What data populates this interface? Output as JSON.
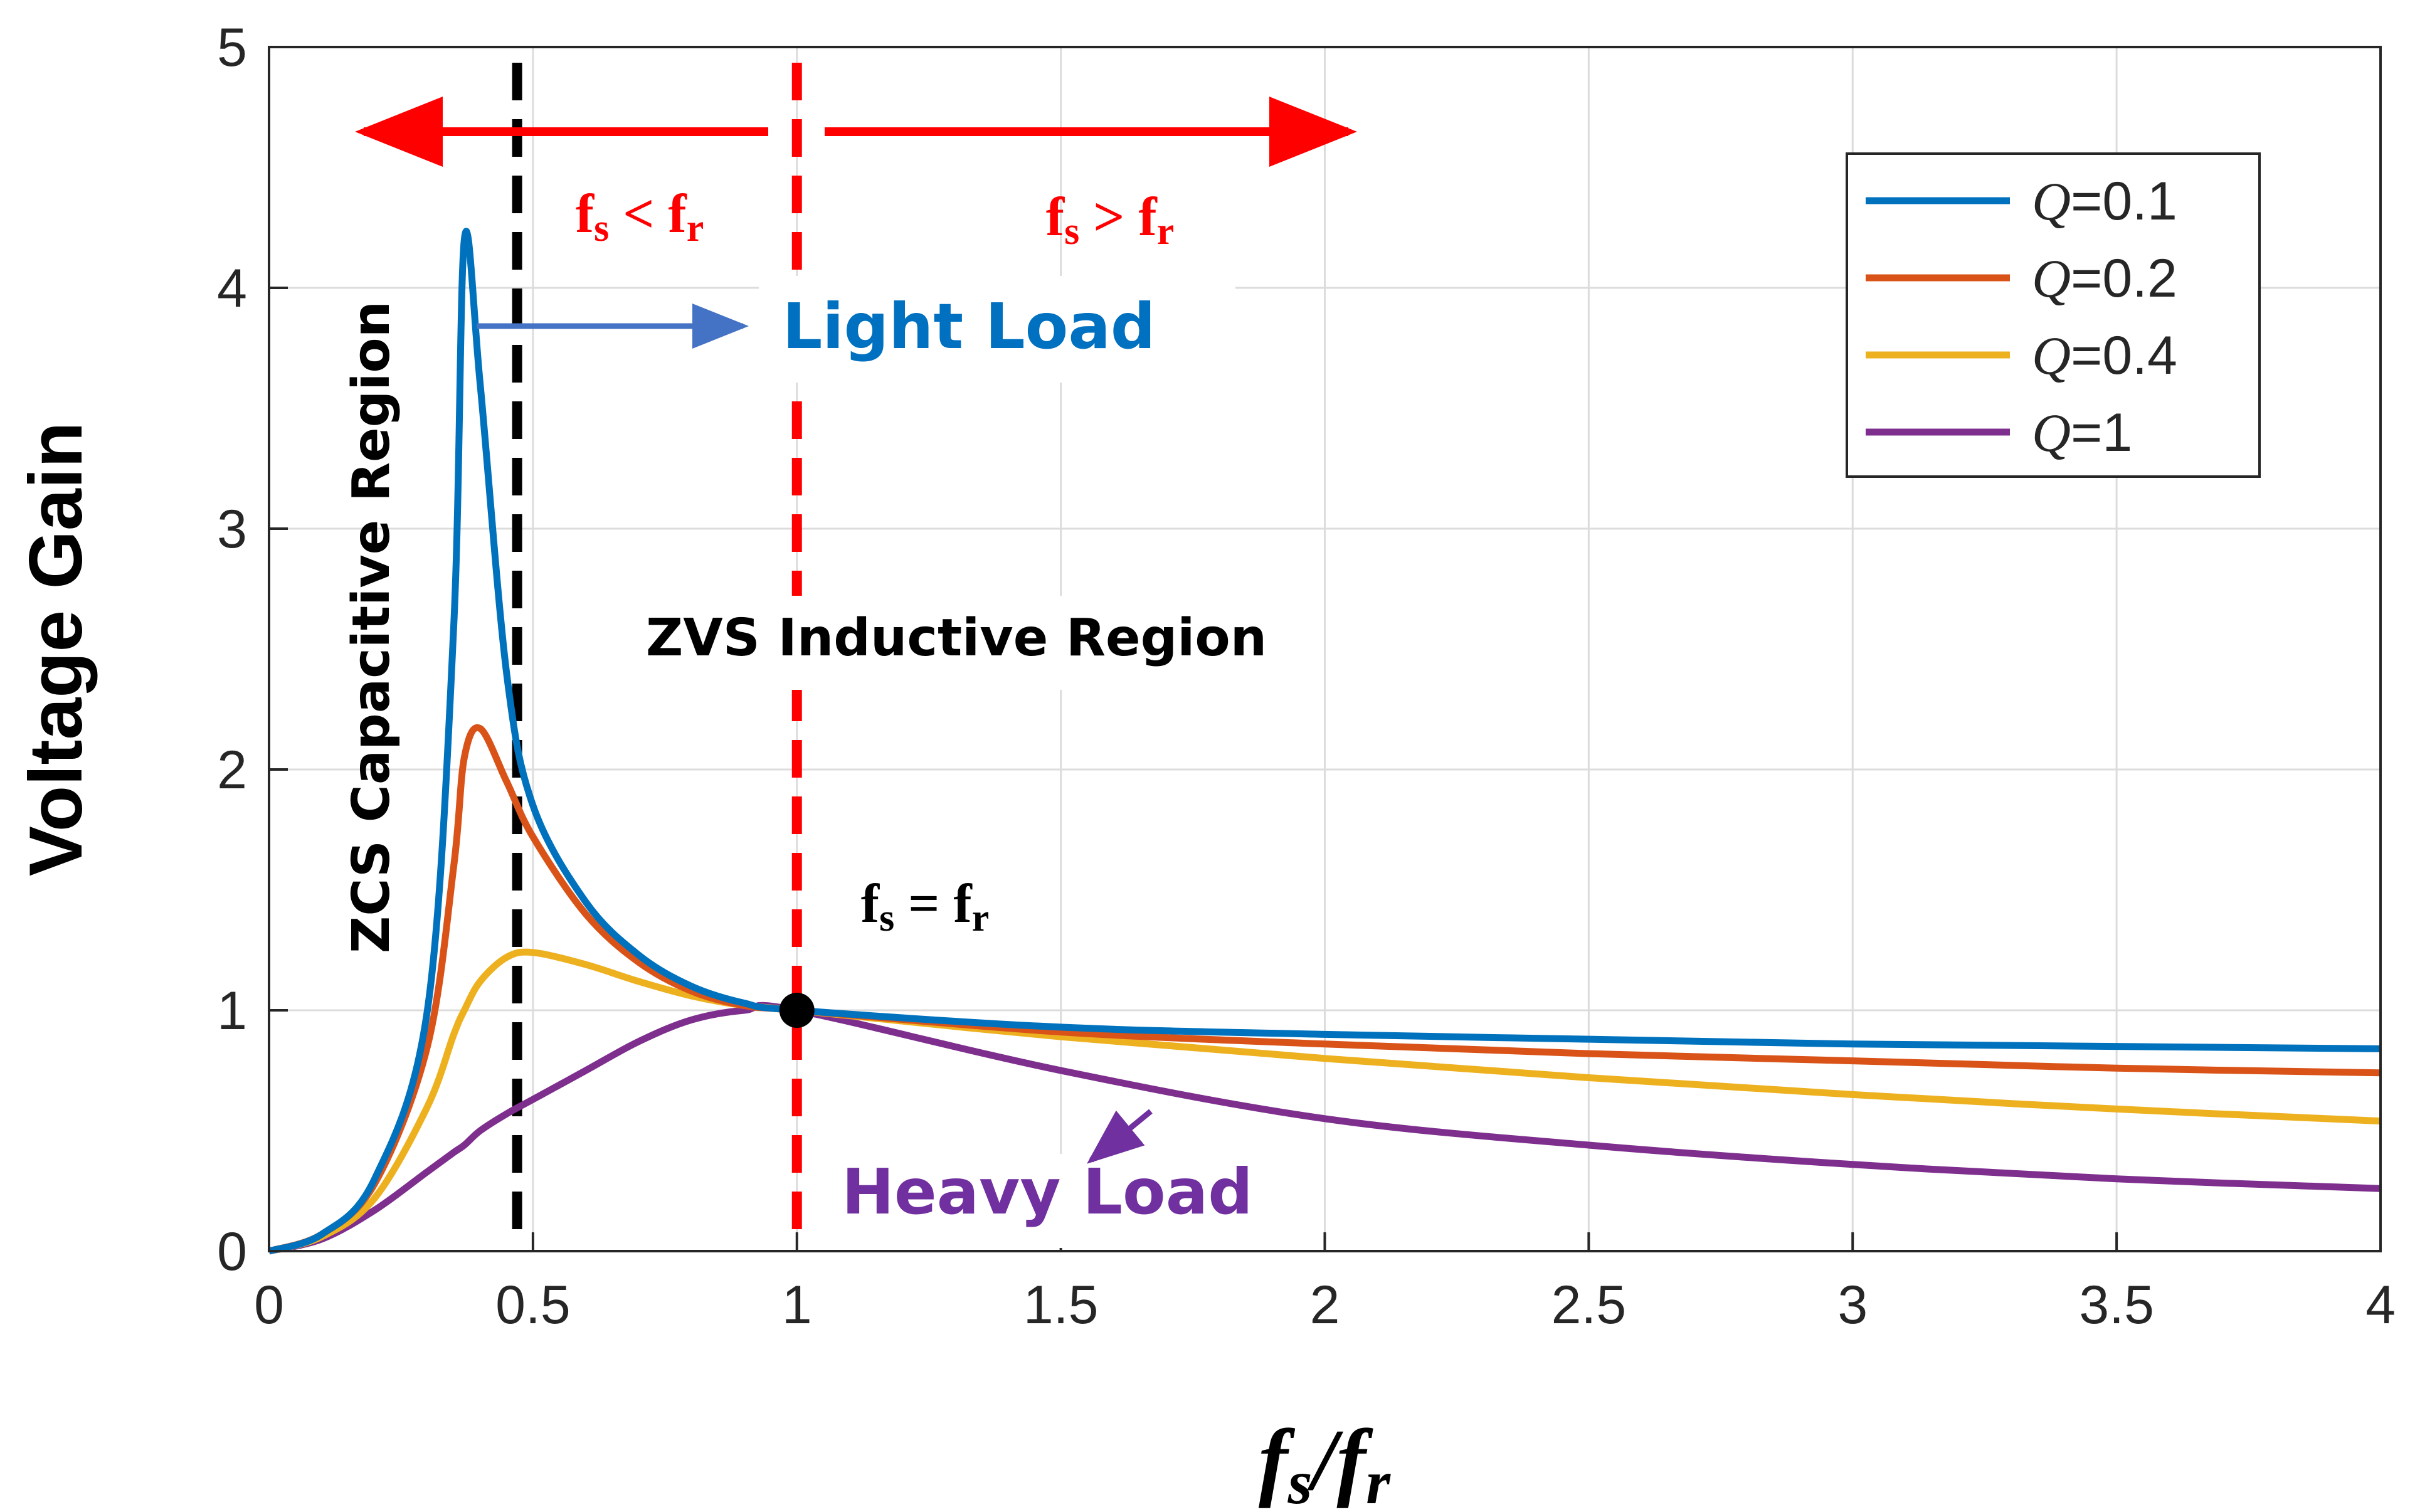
{
  "chart_data": {
    "type": "line",
    "title": "",
    "xlabel": "fs/fr",
    "ylabel": "Voltage Gain",
    "xlim": [
      0,
      4
    ],
    "ylim": [
      0,
      5
    ],
    "x_ticks": [
      "0",
      "0.5",
      "1",
      "1.5",
      "2",
      "2.5",
      "3",
      "3.5",
      "4"
    ],
    "y_ticks": [
      "0",
      "1",
      "2",
      "3",
      "4",
      "5"
    ],
    "grid": true,
    "legend_position": "top-right",
    "x": [
      0.0,
      0.1,
      0.2,
      0.3,
      0.35,
      0.37,
      0.4,
      0.45,
      0.5,
      0.6,
      0.7,
      0.8,
      0.9,
      1.0,
      1.5,
      2.0,
      2.5,
      3.0,
      3.5,
      4.0
    ],
    "series": [
      {
        "name": "Q=0.1",
        "legend_prefix": "Q",
        "legend_value": "=0.1",
        "color": "#0072BD",
        "values": [
          0.0,
          0.07,
          0.3,
          1.0,
          2.6,
          4.2,
          3.6,
          2.4,
          1.85,
          1.45,
          1.23,
          1.1,
          1.03,
          1.0,
          0.93,
          0.9,
          0.88,
          0.86,
          0.85,
          0.84
        ]
      },
      {
        "name": "Q=0.2",
        "legend_prefix": "Q",
        "legend_value": "=0.2",
        "color": "#D95319",
        "values": [
          0.0,
          0.07,
          0.28,
          0.85,
          1.6,
          2.05,
          2.17,
          1.95,
          1.72,
          1.4,
          1.2,
          1.08,
          1.02,
          1.0,
          0.91,
          0.86,
          0.82,
          0.79,
          0.76,
          0.74
        ]
      },
      {
        "name": "Q=0.4",
        "legend_prefix": "Q",
        "legend_value": "=0.4",
        "color": "#EDB120",
        "values": [
          0.0,
          0.06,
          0.22,
          0.6,
          0.9,
          1.0,
          1.12,
          1.22,
          1.24,
          1.19,
          1.12,
          1.06,
          1.02,
          1.0,
          0.89,
          0.8,
          0.72,
          0.65,
          0.59,
          0.54
        ]
      },
      {
        "name": "Q=1",
        "legend_prefix": "Q",
        "legend_value": "=1",
        "color": "#7E2F8E",
        "values": [
          0.0,
          0.05,
          0.17,
          0.33,
          0.41,
          0.44,
          0.5,
          0.57,
          0.63,
          0.75,
          0.87,
          0.96,
          1.0,
          1.0,
          0.75,
          0.55,
          0.44,
          0.36,
          0.3,
          0.26
        ]
      }
    ],
    "vertical_lines": [
      {
        "x": 0.47,
        "color": "#000000",
        "style": "dashed"
      },
      {
        "x": 1.0,
        "color": "#FF0000",
        "style": "dashed"
      }
    ],
    "marker": {
      "x": 1.0,
      "y": 1.0,
      "color": "#000000"
    }
  },
  "annotations": {
    "zcs_region": "ZCS Capacitive Region",
    "zvs_region": "ZVS Inductive Region",
    "light_load": "Light Load",
    "heavy_load": "Heavy Load",
    "fs_lt_fr": {
      "f1": "f",
      "s1": "s",
      "op": " < ",
      "f2": "f",
      "s2": "r"
    },
    "fs_gt_fr": {
      "f1": "f",
      "s1": "s",
      "op": " > ",
      "f2": "f",
      "s2": "r"
    },
    "fs_eq_fr": {
      "f1": "f",
      "s1": "s",
      "op": " = ",
      "f2": "f",
      "s2": "r"
    }
  },
  "axis_labels": {
    "y": "Voltage Gain",
    "x_f1": "f",
    "x_s1": "s",
    "x_slash": "/",
    "x_f2": "f",
    "x_s2": "r"
  },
  "colors": {
    "light_load": "#0070C0",
    "heavy_load": "#7030A0",
    "red": "#FF0000",
    "light_arrow": "#4472C4",
    "heavy_arrow": "#7030A0"
  }
}
